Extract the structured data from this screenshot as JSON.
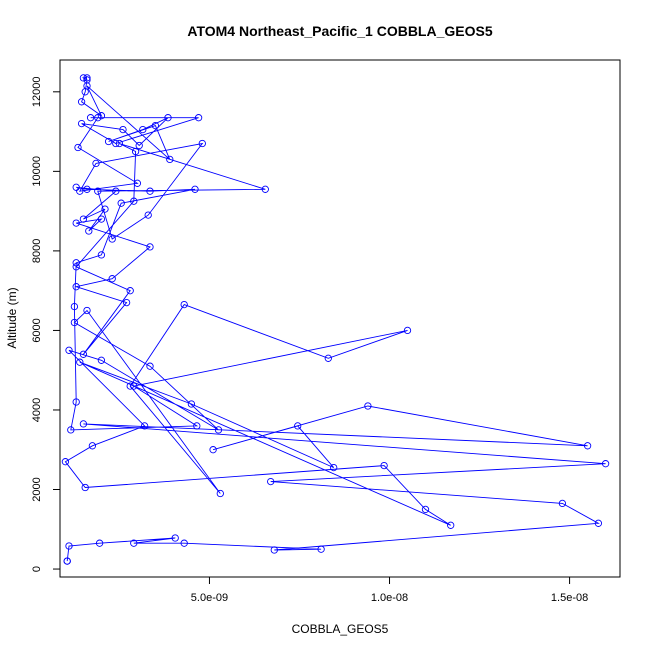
{
  "chart_data": {
    "type": "scatter",
    "title": "ATOM4 Northeast_Pacific_1 COBBLA_GEOS5",
    "xlabel": "COBBLA_GEOS5",
    "ylabel": "Altitude (m)",
    "xlim": [
      8.5e-10,
      1.64e-08
    ],
    "ylim": [
      -200,
      12800
    ],
    "x_ticks": [
      {
        "value": 5e-09,
        "label": "5.0e-09"
      },
      {
        "value": 1e-08,
        "label": "1.0e-08"
      },
      {
        "value": 1.5e-08,
        "label": "1.5e-08"
      }
    ],
    "y_ticks": [
      {
        "value": 0,
        "label": "0"
      },
      {
        "value": 2000,
        "label": "2000"
      },
      {
        "value": 4000,
        "label": "4000"
      },
      {
        "value": 6000,
        "label": "6000"
      },
      {
        "value": 8000,
        "label": "8000"
      },
      {
        "value": 10000,
        "label": "10000"
      },
      {
        "value": 12000,
        "label": "12000"
      }
    ],
    "grid": false,
    "legend": "none",
    "marker": "open-circle",
    "connected": true,
    "color": "#0000ff",
    "series": [
      {
        "x": [
          1.05e-09,
          1.05e-09,
          1.1e-09,
          1.95e-09,
          4.05e-09,
          2.9e-09,
          4.3e-09,
          8.1e-09,
          6.8e-09,
          1.58e-08,
          1.48e-08,
          6.7e-09,
          1.6e-08,
          1.5e-09,
          1.55e-08,
          9.4e-09,
          5.1e-09,
          7.45e-09,
          8.45e-09,
          4.5e-09,
          1.4e-09,
          1.17e-08,
          1.1e-08,
          9.85e-09,
          1.55e-09,
          1e-09,
          1.75e-09,
          3.2e-09,
          1.1e-09,
          2e-09,
          5.25e-09,
          3.35e-09,
          1.25e-09,
          1.6e-09,
          5.3e-09,
          2.8e-09,
          4.3e-09,
          8.3e-09,
          1.05e-08,
          2.9e-09,
          4.65e-09,
          1.15e-09,
          1.3e-09,
          1.25e-09,
          1.3e-09,
          2e-09,
          2.55e-09,
          4.6e-09,
          3.35e-09,
          1.6e-09,
          1.3e-09,
          2.4e-09,
          1.5e-09,
          2.1e-09,
          1.65e-09,
          2e-09,
          1.3e-09,
          3.35e-09,
          2.3e-09,
          1.3e-09,
          2.7e-09,
          1.5e-09,
          2.8e-09,
          1.3e-09,
          2.9e-09,
          2.95e-09,
          2.5e-09,
          6.55e-09,
          1.9e-09,
          2.3e-09,
          3.3e-09,
          4.8e-09,
          1.85e-09,
          1.4e-09,
          3e-09,
          1.35e-09,
          1.9e-09,
          1.7e-09,
          4.7e-09,
          2.4e-09,
          1.45e-09,
          2.6e-09,
          3.05e-09,
          3.85e-09,
          3.15e-09,
          2.2e-09,
          3.5e-09,
          3.9e-09,
          1.6e-09,
          2e-09,
          1.45e-09,
          1.55e-09,
          1.6e-09,
          1.5e-09,
          1.6e-09
        ],
        "y": [
          200,
          200,
          580,
          650,
          780,
          650,
          650,
          500,
          480,
          1150,
          1650,
          2200,
          2650,
          3650,
          3100,
          4100,
          3000,
          3600,
          2550,
          4150,
          5200,
          1100,
          1500,
          2600,
          2050,
          2700,
          3100,
          3600,
          5500,
          5250,
          3500,
          5100,
          6200,
          6500,
          1900,
          4600,
          6650,
          5300,
          6000,
          4600,
          3600,
          3500,
          4200,
          6600,
          7700,
          7900,
          9200,
          9550,
          9500,
          9550,
          9600,
          9500,
          8800,
          9050,
          8500,
          8800,
          8700,
          8100,
          7300,
          7100,
          6700,
          5400,
          7000,
          7600,
          9250,
          10500,
          10700,
          9550,
          9500,
          8300,
          8900,
          10700,
          10200,
          9500,
          9700,
          10600,
          11350,
          11350,
          11350,
          10700,
          11200,
          11050,
          10650,
          11350,
          11050,
          10750,
          11150,
          10300,
          12150,
          11400,
          11750,
          12000,
          12300,
          12350,
          12350
        ]
      }
    ]
  }
}
